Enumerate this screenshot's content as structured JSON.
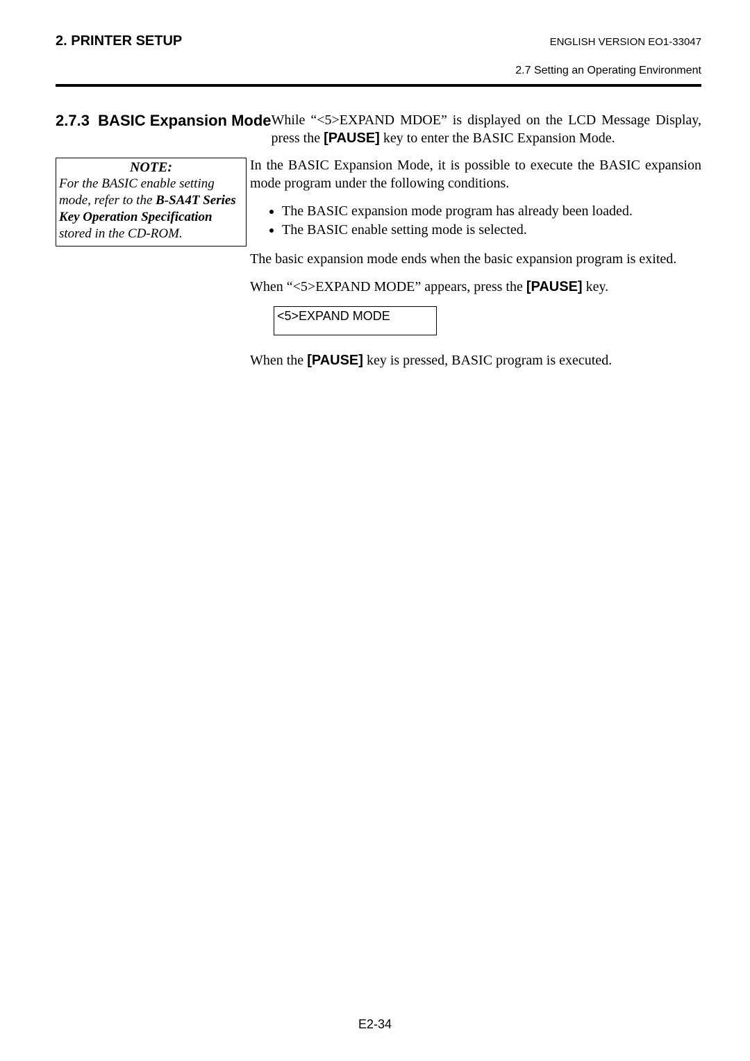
{
  "header": {
    "left": "2. PRINTER SETUP",
    "right": "ENGLISH VERSION EO1-33047",
    "sub": "2.7 Setting an Operating Environment"
  },
  "section": {
    "number": "2.7.3",
    "title": "BASIC Expansion Mode"
  },
  "note": {
    "title": "NOTE:",
    "line1": "For the BASIC enable setting mode, refer to the ",
    "bold": "B-SA4T Series Key Operation Specification",
    "line2": " stored in the CD-ROM."
  },
  "body": {
    "p1a": "While “<5>EXPAND MDOE” is displayed on the LCD Message Display, press the ",
    "p1key": "[PAUSE]",
    "p1b": " key to enter the BASIC Expansion Mode.",
    "p2": "In the BASIC Expansion Mode, it is possible to execute the BASIC expansion mode program under the following conditions.",
    "b1": "The BASIC expansion mode program has already been loaded.",
    "b2": "The BASIC enable setting mode is selected.",
    "p3": "The basic expansion mode ends when the basic expansion program is exited.",
    "p4a": "When “<5>EXPAND MODE” appears, press the ",
    "p4key": "[PAUSE]",
    "p4b": " key.",
    "lcd": "<5>EXPAND MODE",
    "p5a": "When the ",
    "p5key": "[PAUSE]",
    "p5b": " key is pressed, BASIC program is executed."
  },
  "pagenum": "E2-34"
}
